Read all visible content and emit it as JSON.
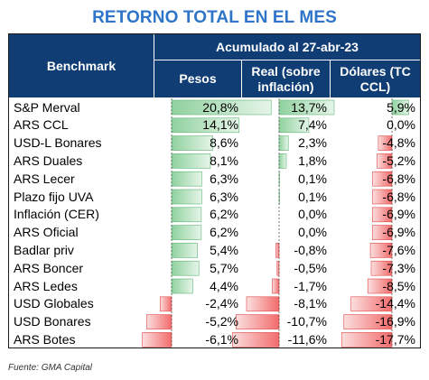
{
  "title": "RETORNO TOTAL EN EL MES",
  "header": {
    "benchmark": "Benchmark",
    "accumulated": "Acumulado al 27-abr-23",
    "col_pesos": "Pesos",
    "col_real": "Real (sobre inflación)",
    "col_dolares": "Dólares (TC CCL)"
  },
  "source": "Fuente: GMA Capital",
  "colors": {
    "header_bg": "#0f3d74",
    "title": "#2e74c8",
    "positive": "#8fd19e",
    "negative": "#f26b6b"
  },
  "chart_data": {
    "type": "table",
    "title": "RETORNO TOTAL EN EL MES",
    "columns": [
      "Pesos",
      "Real (sobre inflación)",
      "Dólares (TC CCL)"
    ],
    "rows": [
      {
        "name": "S&P Merval",
        "values": [
          20.8,
          13.7,
          5.9
        ],
        "labels": [
          "20,8%",
          "13,7%",
          "5,9%"
        ]
      },
      {
        "name": "ARS CCL",
        "values": [
          14.1,
          7.4,
          0.0
        ],
        "labels": [
          "14,1%",
          "7,4%",
          "0,0%"
        ]
      },
      {
        "name": "USD-L Bonares",
        "values": [
          8.6,
          2.3,
          -4.8
        ],
        "labels": [
          "8,6%",
          "2,3%",
          "-4,8%"
        ]
      },
      {
        "name": "ARS Duales",
        "values": [
          8.1,
          1.8,
          -5.2
        ],
        "labels": [
          "8,1%",
          "1,8%",
          "-5,2%"
        ]
      },
      {
        "name": "ARS Lecer",
        "values": [
          6.3,
          0.1,
          -6.8
        ],
        "labels": [
          "6,3%",
          "0,1%",
          "-6,8%"
        ]
      },
      {
        "name": "Plazo fijo UVA",
        "values": [
          6.3,
          0.1,
          -6.8
        ],
        "labels": [
          "6,3%",
          "0,1%",
          "-6,8%"
        ]
      },
      {
        "name": "Inflación (CER)",
        "values": [
          6.2,
          0.0,
          -6.9
        ],
        "labels": [
          "6,2%",
          "0,0%",
          "-6,9%"
        ]
      },
      {
        "name": "ARS Oficial",
        "values": [
          6.2,
          0.0,
          -6.9
        ],
        "labels": [
          "6,2%",
          "0,0%",
          "-6,9%"
        ]
      },
      {
        "name": "Badlar priv",
        "values": [
          5.4,
          -0.8,
          -7.6
        ],
        "labels": [
          "5,4%",
          "-0,8%",
          "-7,6%"
        ]
      },
      {
        "name": "ARS Boncer",
        "values": [
          5.7,
          -0.5,
          -7.3
        ],
        "labels": [
          "5,7%",
          "-0,5%",
          "-7,3%"
        ]
      },
      {
        "name": "ARS Ledes",
        "values": [
          4.4,
          -1.7,
          -8.5
        ],
        "labels": [
          "4,4%",
          "-1,7%",
          "-8,5%"
        ]
      },
      {
        "name": "USD Globales",
        "values": [
          -2.4,
          -8.1,
          -14.4
        ],
        "labels": [
          "-2,4%",
          "-8,1%",
          "-14,4%"
        ]
      },
      {
        "name": "USD Bonares",
        "values": [
          -5.2,
          -10.7,
          -16.9
        ],
        "labels": [
          "-5,2%",
          "-10,7%",
          "-16,9%"
        ]
      },
      {
        "name": "ARS Botes",
        "values": [
          -6.1,
          -11.6,
          -17.7
        ],
        "labels": [
          "-6,1%",
          "-11,6%",
          "-17,7%"
        ]
      }
    ]
  }
}
